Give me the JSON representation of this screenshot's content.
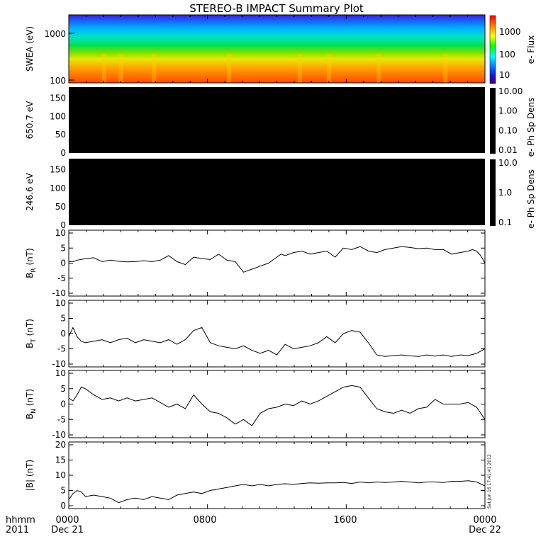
{
  "title": "STEREO-B IMPACT Summary Plot",
  "x_axis": {
    "row1_label": "hhmm",
    "row2_label": "2011",
    "start_date": "Dec 21",
    "end_date": "Dec 22",
    "tick_labels": [
      "0000",
      "0800",
      "1600",
      "0000"
    ]
  },
  "side_stamp": "Sat Jun 16 17:41:41 2012",
  "chart_data": [
    {
      "type": "heatmap",
      "id": "swea",
      "ylabel": "SWEA (eV)",
      "ytick_labels": [
        "1000",
        "100"
      ],
      "scale": "log",
      "colorbar": {
        "label": "e- Flux",
        "ticks": [
          "1000",
          "100",
          "10"
        ],
        "scale": "log"
      }
    },
    {
      "type": "heatmap",
      "id": "ph_650",
      "ylabel": "650.7 eV",
      "ytick_labels": [
        "150",
        "100",
        "50",
        "0"
      ],
      "colorbar": {
        "label": "e- Ph Sp Dens",
        "ticks": [
          "10.00",
          "1.00",
          "0.10",
          "0.01"
        ]
      }
    },
    {
      "type": "heatmap",
      "id": "ph_246",
      "ylabel": "246.6 eV",
      "ytick_labels": [
        "150",
        "100",
        "50",
        "0"
      ],
      "colorbar": {
        "label": "e- Ph Sp Dens",
        "ticks": [
          "10.0",
          "1.0",
          "0.1"
        ]
      }
    },
    {
      "type": "line",
      "id": "br",
      "ylabel_main": "B",
      "ylabel_sub": "R",
      "ylabel_unit": " (nT)",
      "ylim": [
        -10,
        10
      ],
      "ytick_labels": [
        "10",
        "5",
        "0",
        "-5",
        "-10"
      ],
      "x": [
        0.0,
        0.01,
        0.02,
        0.03,
        0.04,
        0.06,
        0.08,
        0.1,
        0.12,
        0.14,
        0.16,
        0.18,
        0.2,
        0.22,
        0.24,
        0.26,
        0.28,
        0.3,
        0.32,
        0.34,
        0.36,
        0.38,
        0.4,
        0.42,
        0.44,
        0.46,
        0.48,
        0.5,
        0.51,
        0.52,
        0.54,
        0.56,
        0.58,
        0.6,
        0.62,
        0.64,
        0.66,
        0.68,
        0.7,
        0.72,
        0.74,
        0.76,
        0.78,
        0.8,
        0.82,
        0.84,
        0.86,
        0.88,
        0.9,
        0.92,
        0.94,
        0.96,
        0.97,
        0.98,
        0.99,
        1.0
      ],
      "y": [
        0.5,
        0.5,
        1.0,
        1.2,
        1.5,
        1.8,
        0.5,
        1.0,
        0.6,
        0.4,
        0.5,
        0.8,
        0.5,
        1.0,
        2.5,
        0.5,
        -0.5,
        2.0,
        1.5,
        1.2,
        3.0,
        1.0,
        0.5,
        -3.0,
        -2.0,
        -1.0,
        0.0,
        2.0,
        3.0,
        2.5,
        3.5,
        4.0,
        3.0,
        3.5,
        4.0,
        2.0,
        5.0,
        4.5,
        5.5,
        4.0,
        3.5,
        4.5,
        5.0,
        5.5,
        5.2,
        4.8,
        5.0,
        4.5,
        4.5,
        3.0,
        3.5,
        4.0,
        4.5,
        4.0,
        2.5,
        0.0
      ]
    },
    {
      "type": "line",
      "id": "bt",
      "ylabel_main": "B",
      "ylabel_sub": "T",
      "ylabel_unit": " (nT)",
      "ylim": [
        -10,
        10
      ],
      "ytick_labels": [
        "10",
        "5",
        "0",
        "-5",
        "-10"
      ],
      "x": [
        0.0,
        0.01,
        0.02,
        0.03,
        0.04,
        0.06,
        0.08,
        0.1,
        0.12,
        0.14,
        0.16,
        0.18,
        0.2,
        0.22,
        0.24,
        0.26,
        0.28,
        0.3,
        0.32,
        0.34,
        0.36,
        0.38,
        0.4,
        0.42,
        0.44,
        0.46,
        0.48,
        0.5,
        0.52,
        0.54,
        0.56,
        0.58,
        0.6,
        0.62,
        0.64,
        0.66,
        0.68,
        0.7,
        0.72,
        0.74,
        0.76,
        0.78,
        0.8,
        0.82,
        0.84,
        0.86,
        0.88,
        0.9,
        0.92,
        0.94,
        0.96,
        0.98,
        1.0
      ],
      "y": [
        -1.0,
        2.0,
        -1.0,
        -2.5,
        -3.0,
        -2.5,
        -2.0,
        -3.0,
        -2.0,
        -1.5,
        -3.0,
        -2.0,
        -2.5,
        -3.0,
        -2.0,
        -3.5,
        -2.0,
        1.0,
        2.0,
        -3.0,
        -4.0,
        -4.5,
        -5.0,
        -4.0,
        -5.5,
        -6.5,
        -5.5,
        -7.0,
        -3.5,
        -5.0,
        -4.5,
        -4.0,
        -3.0,
        -1.0,
        -3.0,
        0.0,
        1.0,
        0.5,
        -3.0,
        -7.0,
        -7.5,
        -7.2,
        -7.0,
        -7.3,
        -7.5,
        -7.0,
        -7.4,
        -7.0,
        -7.5,
        -7.0,
        -7.2,
        -6.5,
        -5.0
      ]
    },
    {
      "type": "line",
      "id": "bn",
      "ylabel_main": "B",
      "ylabel_sub": "N",
      "ylabel_unit": " (nT)",
      "ylim": [
        -10,
        10
      ],
      "ytick_labels": [
        "10",
        "5",
        "0",
        "-5",
        "-10"
      ],
      "x": [
        0.0,
        0.01,
        0.02,
        0.03,
        0.04,
        0.06,
        0.08,
        0.1,
        0.12,
        0.14,
        0.16,
        0.18,
        0.2,
        0.22,
        0.24,
        0.26,
        0.28,
        0.3,
        0.32,
        0.34,
        0.36,
        0.38,
        0.4,
        0.42,
        0.44,
        0.46,
        0.48,
        0.5,
        0.52,
        0.54,
        0.56,
        0.58,
        0.6,
        0.62,
        0.64,
        0.66,
        0.68,
        0.7,
        0.72,
        0.74,
        0.76,
        0.78,
        0.8,
        0.82,
        0.84,
        0.86,
        0.88,
        0.9,
        0.92,
        0.94,
        0.96,
        0.98,
        1.0
      ],
      "y": [
        2.0,
        1.0,
        3.0,
        5.5,
        5.0,
        3.0,
        1.5,
        2.0,
        1.0,
        2.0,
        1.0,
        1.5,
        2.0,
        0.5,
        -1.0,
        0.0,
        -1.5,
        3.0,
        0.0,
        -2.5,
        -3.0,
        -4.5,
        -6.5,
        -5.0,
        -7.0,
        -3.0,
        -1.5,
        -1.0,
        0.0,
        -0.5,
        1.0,
        0.0,
        1.0,
        2.5,
        4.0,
        5.5,
        6.0,
        5.5,
        2.0,
        -1.5,
        -2.5,
        -3.0,
        -2.0,
        -3.0,
        -1.5,
        -1.0,
        1.5,
        0.0,
        0.0,
        0.0,
        0.5,
        -1.0,
        -5.0
      ]
    },
    {
      "type": "line",
      "id": "bmag",
      "ylabel_main": "|B|",
      "ylabel_sub": "",
      "ylabel_unit": " (nT)",
      "ylim": [
        0,
        20
      ],
      "ytick_labels": [
        "20",
        "15",
        "10",
        "5",
        "0"
      ],
      "x": [
        0.0,
        0.01,
        0.02,
        0.03,
        0.04,
        0.06,
        0.08,
        0.1,
        0.12,
        0.14,
        0.16,
        0.18,
        0.2,
        0.22,
        0.24,
        0.26,
        0.28,
        0.3,
        0.32,
        0.34,
        0.36,
        0.38,
        0.4,
        0.42,
        0.44,
        0.46,
        0.48,
        0.5,
        0.52,
        0.54,
        0.56,
        0.58,
        0.6,
        0.62,
        0.64,
        0.66,
        0.68,
        0.7,
        0.72,
        0.74,
        0.76,
        0.78,
        0.8,
        0.82,
        0.84,
        0.86,
        0.88,
        0.9,
        0.92,
        0.94,
        0.96,
        0.98,
        1.0
      ],
      "y": [
        2.0,
        4.0,
        5.0,
        4.5,
        3.0,
        3.5,
        3.0,
        2.5,
        1.0,
        2.0,
        2.5,
        2.0,
        3.0,
        2.5,
        2.0,
        3.5,
        4.0,
        4.5,
        4.0,
        5.0,
        5.5,
        6.0,
        6.5,
        7.0,
        6.5,
        7.0,
        6.5,
        7.0,
        7.2,
        7.0,
        7.3,
        7.5,
        7.4,
        7.5,
        7.5,
        7.6,
        7.3,
        7.8,
        7.5,
        7.8,
        7.6,
        7.8,
        8.0,
        7.8,
        7.5,
        7.8,
        7.8,
        7.6,
        8.0,
        8.0,
        8.2,
        7.8,
        6.5
      ]
    }
  ]
}
